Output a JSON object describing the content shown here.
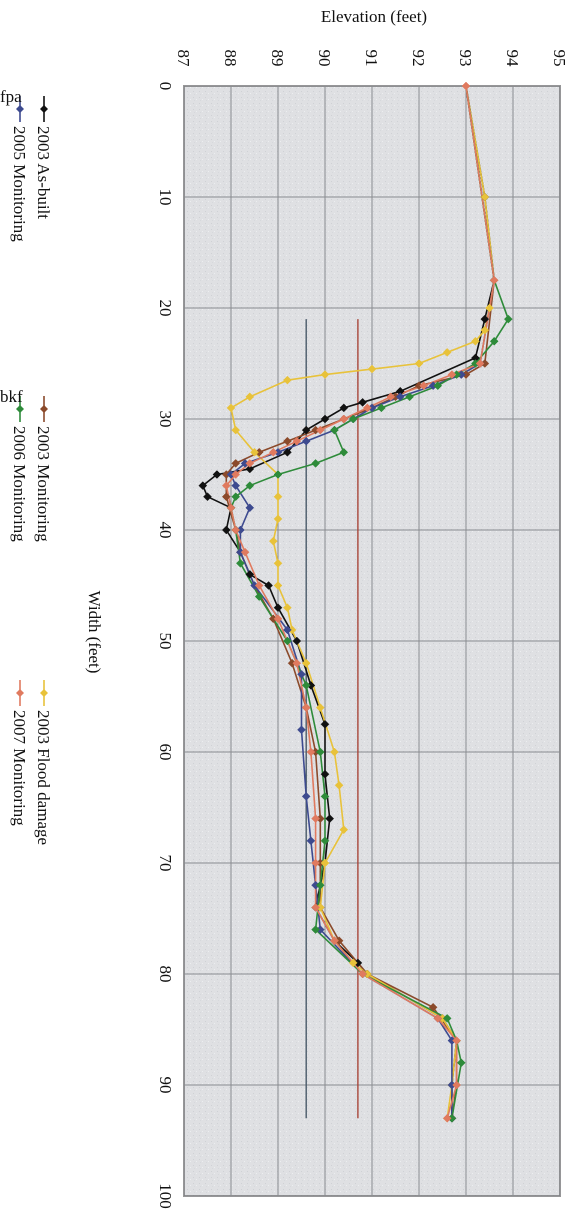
{
  "chart_data": {
    "type": "line",
    "title": "",
    "xlabel": "Width (feet)",
    "ylabel": "Elevation (feet)",
    "xlim": [
      0,
      100
    ],
    "ylim": [
      87,
      95
    ],
    "x_ticks": [
      "0",
      "10",
      "20",
      "30",
      "40",
      "50",
      "60",
      "70",
      "80",
      "90",
      "100"
    ],
    "y_ticks": [
      "87",
      "88",
      "89",
      "90",
      "91",
      "92",
      "93",
      "94",
      "95"
    ],
    "grid": true,
    "orientation": "rotated-90-clockwise",
    "legend_position": "bottom",
    "series": [
      {
        "name": "2003 As-built",
        "color": "#111111",
        "marker": "diamond",
        "points": [
          [
            0,
            93.0
          ],
          [
            10,
            93.4
          ],
          [
            17.5,
            93.6
          ],
          [
            21,
            93.4
          ],
          [
            24.5,
            93.2
          ],
          [
            27.5,
            91.6
          ],
          [
            28.5,
            90.8
          ],
          [
            29,
            90.4
          ],
          [
            30,
            90.0
          ],
          [
            31,
            89.6
          ],
          [
            33,
            89.2
          ],
          [
            34.5,
            88.4
          ],
          [
            35,
            87.7
          ],
          [
            36,
            87.4
          ],
          [
            37,
            87.5
          ],
          [
            38,
            88.0
          ],
          [
            40,
            87.9
          ],
          [
            42,
            88.2
          ],
          [
            44,
            88.4
          ],
          [
            45,
            88.8
          ],
          [
            47,
            89.0
          ],
          [
            50,
            89.4
          ],
          [
            54,
            89.7
          ],
          [
            57.5,
            90.0
          ],
          [
            62,
            90.0
          ],
          [
            66,
            90.1
          ],
          [
            70,
            90.0
          ],
          [
            74,
            89.8
          ],
          [
            77,
            90.2
          ],
          [
            79,
            90.7
          ],
          [
            80,
            90.9
          ],
          [
            84,
            92.5
          ],
          [
            86,
            92.8
          ],
          [
            90,
            92.7
          ],
          [
            93,
            92.7
          ]
        ]
      },
      {
        "name": "2003 Monitoring",
        "color": "#8b4a2b",
        "marker": "diamond",
        "points": [
          [
            0,
            93.0
          ],
          [
            17.5,
            93.6
          ],
          [
            25,
            93.4
          ],
          [
            26,
            93.0
          ],
          [
            27,
            92.0
          ],
          [
            28,
            91.5
          ],
          [
            29,
            91.0
          ],
          [
            30,
            90.4
          ],
          [
            31,
            89.8
          ],
          [
            32,
            89.2
          ],
          [
            33,
            88.6
          ],
          [
            34,
            88.1
          ],
          [
            35,
            87.9
          ],
          [
            37,
            87.9
          ],
          [
            40,
            88.1
          ],
          [
            42,
            88.2
          ],
          [
            45,
            88.5
          ],
          [
            48,
            88.9
          ],
          [
            52,
            89.3
          ],
          [
            56,
            89.6
          ],
          [
            60,
            89.8
          ],
          [
            66,
            89.9
          ],
          [
            70,
            89.9
          ],
          [
            74,
            89.9
          ],
          [
            77,
            90.3
          ],
          [
            80,
            90.9
          ],
          [
            83,
            92.3
          ],
          [
            86,
            92.8
          ],
          [
            90,
            92.8
          ],
          [
            93,
            92.7
          ]
        ]
      },
      {
        "name": "2003 Flood damage",
        "color": "#e8c23a",
        "marker": "diamond",
        "points": [
          [
            0,
            93.0
          ],
          [
            10,
            93.4
          ],
          [
            17.5,
            93.6
          ],
          [
            20,
            93.5
          ],
          [
            22,
            93.4
          ],
          [
            23,
            93.2
          ],
          [
            24,
            92.6
          ],
          [
            25,
            92.0
          ],
          [
            25.5,
            91.0
          ],
          [
            26,
            90.0
          ],
          [
            26.5,
            89.2
          ],
          [
            28,
            88.4
          ],
          [
            29,
            88.0
          ],
          [
            31,
            88.1
          ],
          [
            33,
            88.5
          ],
          [
            35,
            89.0
          ],
          [
            37,
            89.0
          ],
          [
            39,
            89.0
          ],
          [
            41,
            88.9
          ],
          [
            43,
            89.0
          ],
          [
            45,
            89.0
          ],
          [
            47,
            89.2
          ],
          [
            49,
            89.3
          ],
          [
            52,
            89.6
          ],
          [
            56,
            89.9
          ],
          [
            60,
            90.2
          ],
          [
            63,
            90.3
          ],
          [
            67,
            90.4
          ],
          [
            70,
            90.0
          ],
          [
            74,
            89.9
          ],
          [
            77,
            90.2
          ],
          [
            79,
            90.6
          ],
          [
            80,
            90.9
          ],
          [
            84,
            92.5
          ],
          [
            86,
            92.8
          ],
          [
            90,
            92.7
          ],
          [
            93,
            92.6
          ]
        ]
      },
      {
        "name": "2005 Monitoring",
        "color": "#3d4a8f",
        "marker": "diamond",
        "points": [
          [
            0,
            93.0
          ],
          [
            17.5,
            93.6
          ],
          [
            25,
            93.3
          ],
          [
            26,
            92.9
          ],
          [
            27,
            92.3
          ],
          [
            28,
            91.6
          ],
          [
            29,
            91.0
          ],
          [
            30,
            90.6
          ],
          [
            31,
            90.2
          ],
          [
            32,
            89.6
          ],
          [
            33,
            89.0
          ],
          [
            34,
            88.3
          ],
          [
            35,
            88.0
          ],
          [
            36,
            88.1
          ],
          [
            38,
            88.4
          ],
          [
            40,
            88.2
          ],
          [
            42,
            88.2
          ],
          [
            45,
            88.5
          ],
          [
            49,
            89.2
          ],
          [
            53,
            89.5
          ],
          [
            58,
            89.5
          ],
          [
            64,
            89.6
          ],
          [
            68,
            89.7
          ],
          [
            72,
            89.8
          ],
          [
            76,
            89.9
          ],
          [
            80,
            90.8
          ],
          [
            84,
            92.4
          ],
          [
            86,
            92.7
          ],
          [
            90,
            92.7
          ],
          [
            93,
            92.7
          ]
        ]
      },
      {
        "name": "2006 Monitoring",
        "color": "#2e8b3a",
        "marker": "diamond",
        "points": [
          [
            0,
            93.0
          ],
          [
            17.5,
            93.6
          ],
          [
            21,
            93.9
          ],
          [
            23,
            93.6
          ],
          [
            25,
            93.2
          ],
          [
            26,
            92.8
          ],
          [
            27,
            92.4
          ],
          [
            28,
            91.8
          ],
          [
            29,
            91.2
          ],
          [
            30,
            90.6
          ],
          [
            31,
            90.2
          ],
          [
            33,
            90.4
          ],
          [
            34,
            89.8
          ],
          [
            35,
            89.0
          ],
          [
            36,
            88.4
          ],
          [
            37,
            88.1
          ],
          [
            38,
            88.0
          ],
          [
            40,
            88.1
          ],
          [
            43,
            88.2
          ],
          [
            46,
            88.6
          ],
          [
            50,
            89.2
          ],
          [
            54,
            89.6
          ],
          [
            60,
            89.9
          ],
          [
            64,
            90.0
          ],
          [
            68,
            90.0
          ],
          [
            72,
            89.9
          ],
          [
            76,
            89.8
          ],
          [
            80,
            90.8
          ],
          [
            84,
            92.6
          ],
          [
            86,
            92.8
          ],
          [
            88,
            92.9
          ],
          [
            93,
            92.7
          ]
        ]
      },
      {
        "name": "2007 Monitoring",
        "color": "#e07a5f",
        "marker": "diamond",
        "points": [
          [
            0,
            93.0
          ],
          [
            17.5,
            93.6
          ],
          [
            25,
            93.3
          ],
          [
            26,
            92.7
          ],
          [
            27,
            92.1
          ],
          [
            28,
            91.4
          ],
          [
            29,
            90.9
          ],
          [
            30,
            90.4
          ],
          [
            31,
            89.9
          ],
          [
            32,
            89.4
          ],
          [
            33,
            88.9
          ],
          [
            34,
            88.4
          ],
          [
            35,
            88.1
          ],
          [
            36,
            87.9
          ],
          [
            38,
            88.0
          ],
          [
            40,
            88.1
          ],
          [
            42,
            88.3
          ],
          [
            45,
            88.6
          ],
          [
            48,
            89.0
          ],
          [
            52,
            89.4
          ],
          [
            56,
            89.6
          ],
          [
            60,
            89.7
          ],
          [
            66,
            89.8
          ],
          [
            70,
            89.8
          ],
          [
            74,
            89.8
          ],
          [
            77,
            90.2
          ],
          [
            80,
            90.8
          ],
          [
            84,
            92.4
          ],
          [
            86,
            92.8
          ],
          [
            90,
            92.8
          ],
          [
            93,
            92.6
          ]
        ]
      },
      {
        "name": "fpa",
        "color": "#a8463a",
        "marker": "none",
        "points": [
          [
            21,
            90.7
          ],
          [
            93,
            90.7
          ]
        ]
      },
      {
        "name": "bkf",
        "color": "#4a5a6a",
        "marker": "none",
        "points": [
          [
            21,
            89.6
          ],
          [
            93,
            89.6
          ]
        ]
      }
    ]
  }
}
